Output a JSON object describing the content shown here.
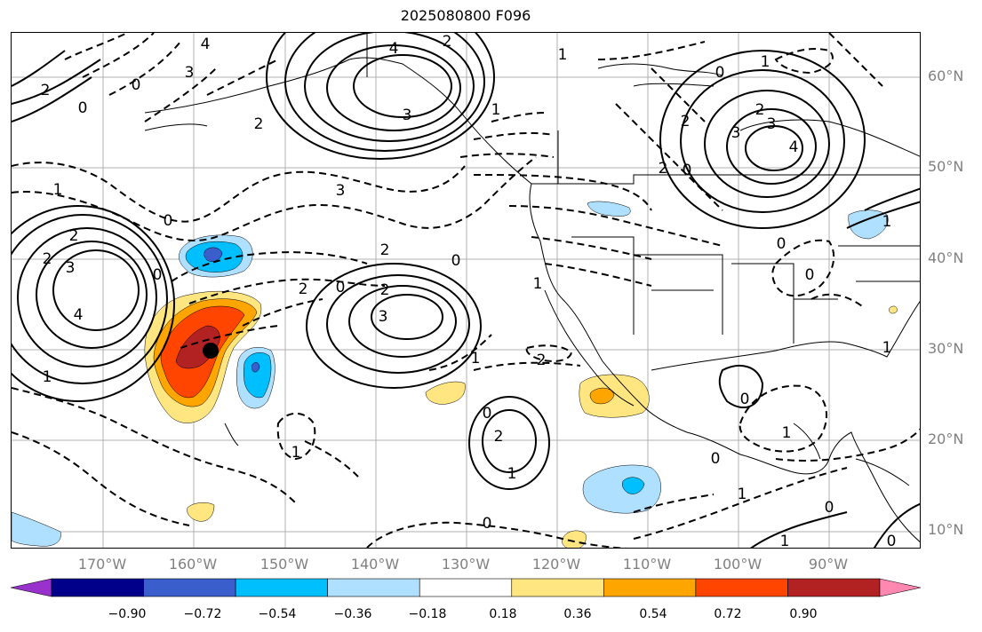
{
  "title": "2025080800 F096",
  "lat_labels": [
    "60°N",
    "50°N",
    "40°N",
    "30°N",
    "20°N",
    "10°N"
  ],
  "lon_labels": [
    "170°W",
    "160°W",
    "150°W",
    "140°W",
    "130°W",
    "120°W",
    "110°W",
    "100°W",
    "90°W"
  ],
  "contour_labels": {
    "c1": "4",
    "c2": "3",
    "c3": "2",
    "c4": "0",
    "c5": "2",
    "c6": "1",
    "c7": "3",
    "c8": "2",
    "c9": "4",
    "c10": "2",
    "c11": "3",
    "c12": "0",
    "c13": "2",
    "c14": "1",
    "c15": "0",
    "c16": "2",
    "c17": "0",
    "c18": "3",
    "c19": "1",
    "c20": "0",
    "c21": "1",
    "c22": "2",
    "c23": "4",
    "c24": "3",
    "c25": "2",
    "c26": "1",
    "c27": "0",
    "c28": "0",
    "c29": "2",
    "c30": "0",
    "c31": "3",
    "c32": "2",
    "c33": "1",
    "c34": "2",
    "c35": "0",
    "c36": "1",
    "c37": "0",
    "c38": "2",
    "c39": "1",
    "c40": "1",
    "c41": "0",
    "c42": "0",
    "c43": "1",
    "c44": "0",
    "c45": "1",
    "c46": "0",
    "c47": "0",
    "c48": "1",
    "c49": "3",
    "c50": "4",
    "c51": "2",
    "c52": "1",
    "c53": "1",
    "c54": "0"
  },
  "colorbar": {
    "colors": [
      "#9932cc",
      "#00008b",
      "#3a5fcd",
      "#00bfff",
      "#b0e0ff",
      "#ffffff",
      "#ffe680",
      "#ffa500",
      "#ff4500",
      "#b22222",
      "#ff88b0"
    ],
    "ticks": [
      "−0.90",
      "−0.72",
      "−0.54",
      "−0.36",
      "−0.18",
      "0.18",
      "0.36",
      "0.54",
      "0.72",
      "0.90"
    ]
  },
  "marker": "storm-center-dot"
}
